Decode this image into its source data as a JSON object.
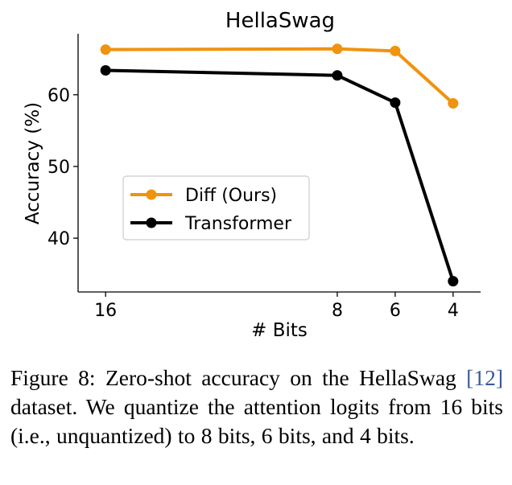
{
  "chart_data": {
    "type": "line",
    "title": "HellaSwag",
    "xlabel": "# Bits",
    "ylabel": "Accuracy (%)",
    "x": [
      16,
      8,
      6,
      4
    ],
    "x_tick_labels": [
      "16",
      "8",
      "6",
      "4"
    ],
    "y_ticks": [
      40,
      50,
      60
    ],
    "y_tick_labels": [
      "40",
      "50",
      "60"
    ],
    "ylim": [
      32.5,
      68.5
    ],
    "grid": false,
    "legend_position": "center-left",
    "series": [
      {
        "name": "Diff (Ours)",
        "values": [
          66.3,
          66.4,
          66.1,
          58.8
        ],
        "color": "#f0930f"
      },
      {
        "name": "Transformer",
        "values": [
          63.4,
          62.7,
          58.9,
          34.0
        ],
        "color": "#000000"
      }
    ]
  },
  "caption": {
    "label": "Figure 8:",
    "text_before": "Zero-shot accuracy on the HellaSwag",
    "citation": "[12]",
    "text_after": "dataset. We quantize the attention logits from 16 bits (i.e., unquantized) to 8 bits, 6 bits, and 4 bits."
  }
}
